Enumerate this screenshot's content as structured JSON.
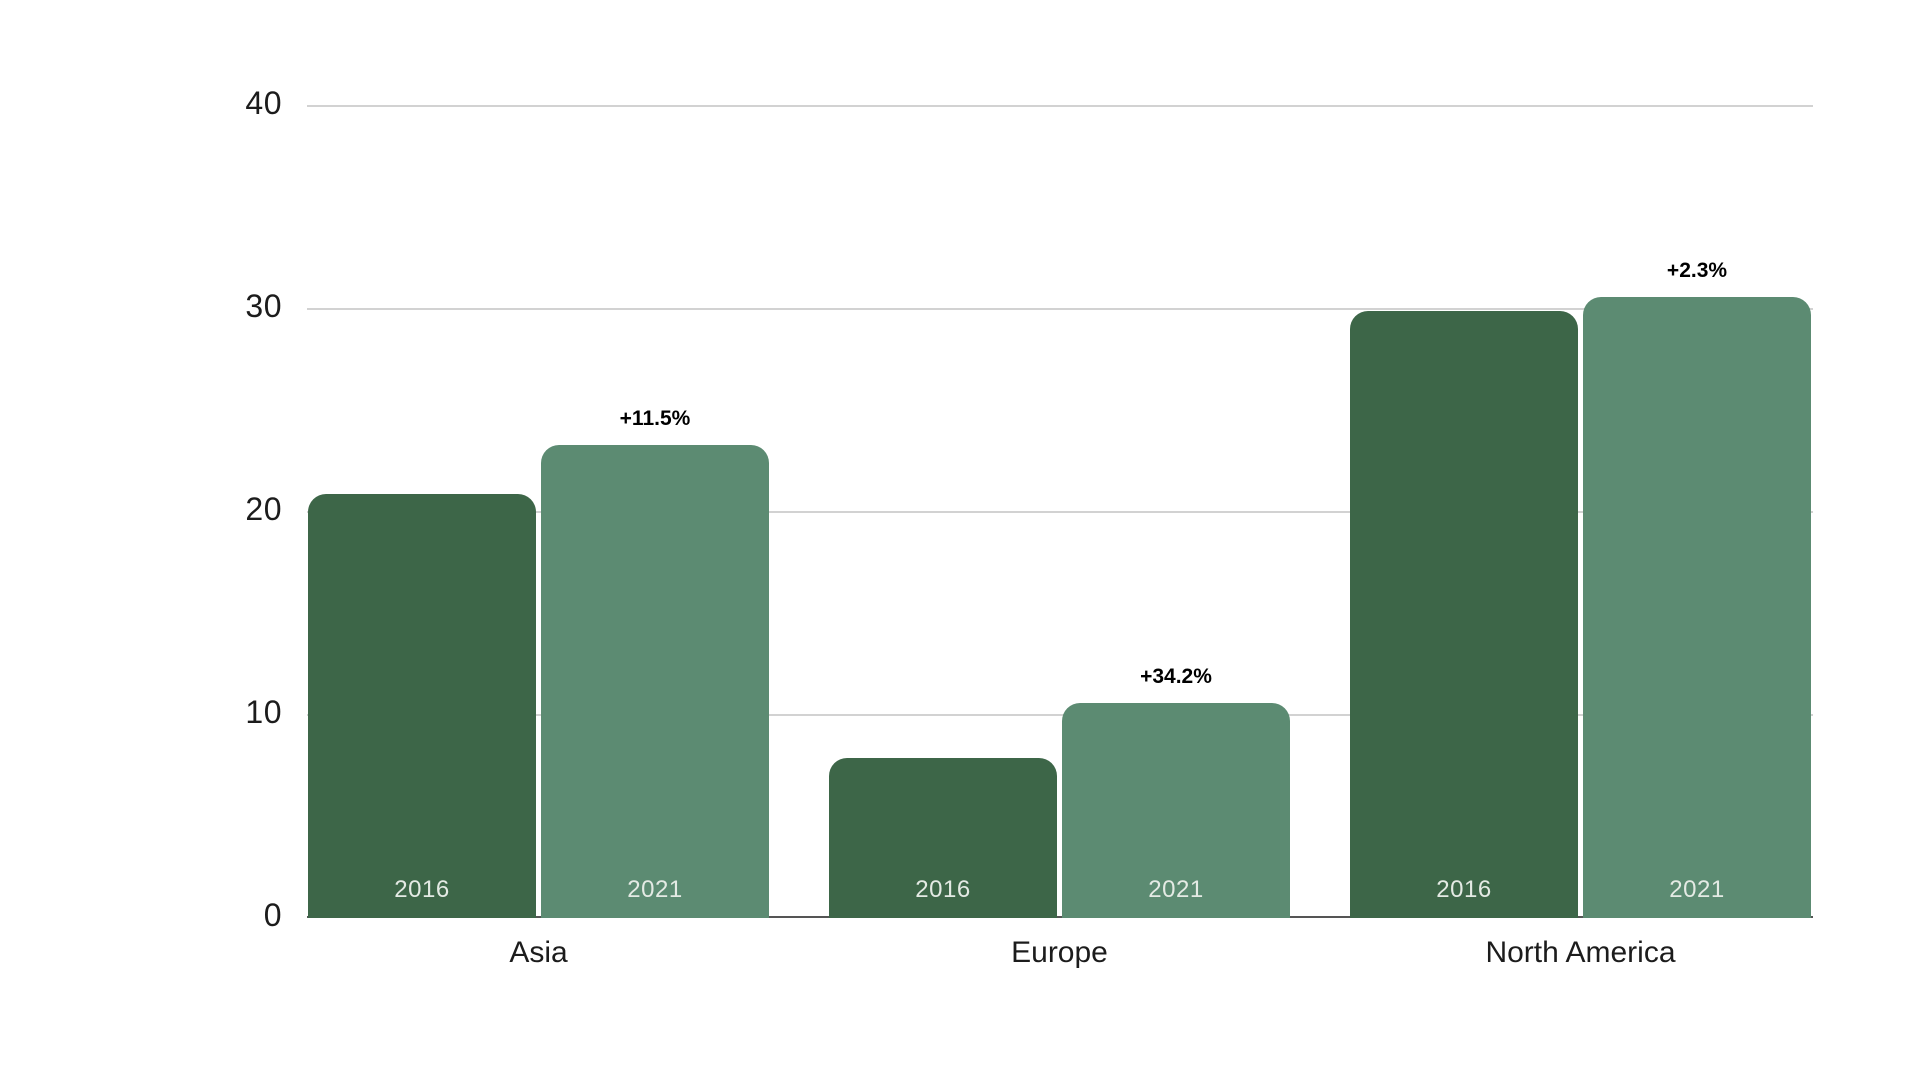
{
  "chart_data": {
    "type": "bar",
    "title": "",
    "categories": [
      "Asia",
      "Europe",
      "North America"
    ],
    "series": [
      {
        "name": "2016",
        "color": "#3d6648",
        "values": [
          20.9,
          7.9,
          29.9
        ]
      },
      {
        "name": "2021",
        "color": "#5c8b72",
        "values": [
          23.3,
          10.6,
          30.6
        ]
      }
    ],
    "change_labels": [
      "+11.5%",
      "+34.2%",
      "+2.3%"
    ],
    "yticks": [
      0,
      10,
      20,
      30,
      40
    ],
    "ylim": [
      0,
      40
    ],
    "grid": "horizontal gridlines at 10,20,30,40; dark baseline at 0",
    "legend": "none (years labeled inside bars)",
    "colors": {
      "bar_2016": "#3d6648",
      "bar_2021": "#5c8b72",
      "gridline": "#d2d2d2",
      "baseline": "#555555",
      "axis_text": "#1c1c1c",
      "in_bar_label": "#e4eae4",
      "change_label": "#000000",
      "background": "#ffffff"
    }
  }
}
